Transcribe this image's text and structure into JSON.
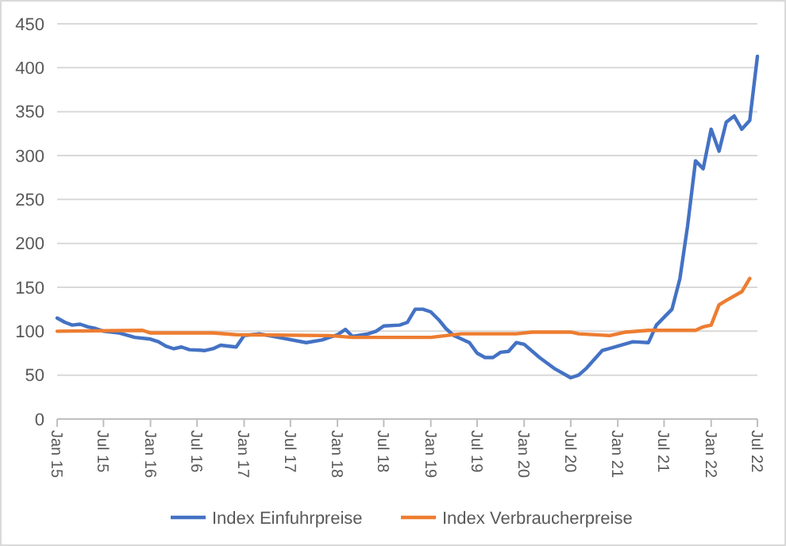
{
  "chart_data": {
    "type": "line",
    "xlim": [
      "2015-01",
      "2022-07"
    ],
    "xticks": [
      {
        "value": "2015-01",
        "label": "Jan 15"
      },
      {
        "value": "2015-07",
        "label": "Jul 15"
      },
      {
        "value": "2016-01",
        "label": "Jan 16"
      },
      {
        "value": "2016-07",
        "label": "Jul 16"
      },
      {
        "value": "2017-01",
        "label": "Jan 17"
      },
      {
        "value": "2017-07",
        "label": "Jul 17"
      },
      {
        "value": "2018-01",
        "label": "Jan 18"
      },
      {
        "value": "2018-07",
        "label": "Jul 18"
      },
      {
        "value": "2019-01",
        "label": "Jan 19"
      },
      {
        "value": "2019-07",
        "label": "Jul 19"
      },
      {
        "value": "2020-01",
        "label": "Jan 20"
      },
      {
        "value": "2020-07",
        "label": "Jul 20"
      },
      {
        "value": "2021-01",
        "label": "Jan 21"
      },
      {
        "value": "2021-07",
        "label": "Jul 21"
      },
      {
        "value": "2022-01",
        "label": "Jan 22"
      },
      {
        "value": "2022-07",
        "label": "Jul 22"
      }
    ],
    "ylim": [
      0,
      450
    ],
    "yticks": [
      0,
      50,
      100,
      150,
      200,
      250,
      300,
      350,
      400,
      450
    ],
    "grid": "y",
    "legend": "bottom",
    "line_style": "solid",
    "marker": "none",
    "series": [
      {
        "name": "Index Einfuhrpreise",
        "color": "#4472c4",
        "x": [
          "2015-01",
          "2015-02",
          "2015-03",
          "2015-04",
          "2015-05",
          "2015-06",
          "2015-07",
          "2015-09",
          "2015-11",
          "2016-01",
          "2016-02",
          "2016-03",
          "2016-04",
          "2016-05",
          "2016-06",
          "2016-08",
          "2016-09",
          "2016-10",
          "2016-12",
          "2017-01",
          "2017-03",
          "2017-06",
          "2017-09",
          "2017-11",
          "2018-01",
          "2018-02",
          "2018-03",
          "2018-05",
          "2018-06",
          "2018-07",
          "2018-09",
          "2018-10",
          "2018-11",
          "2018-12",
          "2019-01",
          "2019-02",
          "2019-03",
          "2019-04",
          "2019-06",
          "2019-07",
          "2019-08",
          "2019-09",
          "2019-10",
          "2019-11",
          "2019-12",
          "2020-01",
          "2020-03",
          "2020-05",
          "2020-07",
          "2020-08",
          "2020-09",
          "2020-11",
          "2021-01",
          "2021-03",
          "2021-05",
          "2021-06",
          "2021-08",
          "2021-09",
          "2021-10",
          "2021-11",
          "2021-12",
          "2022-01",
          "2022-02",
          "2022-03",
          "2022-04",
          "2022-05",
          "2022-06",
          "2022-07"
        ],
        "values": [
          115,
          110,
          107,
          108,
          105,
          103,
          100,
          98,
          93,
          91,
          88,
          83,
          80,
          82,
          79,
          78,
          80,
          84,
          82,
          95,
          97,
          92,
          87,
          90,
          96,
          102,
          94,
          97,
          100,
          106,
          107,
          110,
          125,
          125,
          122,
          113,
          103,
          95,
          87,
          75,
          70,
          70,
          76,
          77,
          87,
          85,
          70,
          57,
          47,
          50,
          58,
          78,
          83,
          88,
          87,
          107,
          125,
          160,
          220,
          294,
          285,
          330,
          305,
          338,
          345,
          330,
          340,
          413
        ]
      },
      {
        "name": "Index Verbraucherpreise",
        "color": "#ed7d31",
        "x": [
          "2015-01",
          "2015-12",
          "2016-01",
          "2016-09",
          "2016-12",
          "2017-12",
          "2018-03",
          "2019-01",
          "2019-03",
          "2019-05",
          "2019-12",
          "2020-02",
          "2020-07",
          "2020-08",
          "2020-12",
          "2021-02",
          "2021-05",
          "2021-11",
          "2021-12",
          "2022-01",
          "2022-02",
          "2022-03",
          "2022-05",
          "2022-06"
        ],
        "values": [
          100,
          101,
          98,
          98,
          96,
          95,
          93,
          93,
          95,
          97,
          97,
          99,
          99,
          97,
          95,
          99,
          101,
          101,
          105,
          107,
          130,
          135,
          145,
          160
        ]
      }
    ]
  }
}
